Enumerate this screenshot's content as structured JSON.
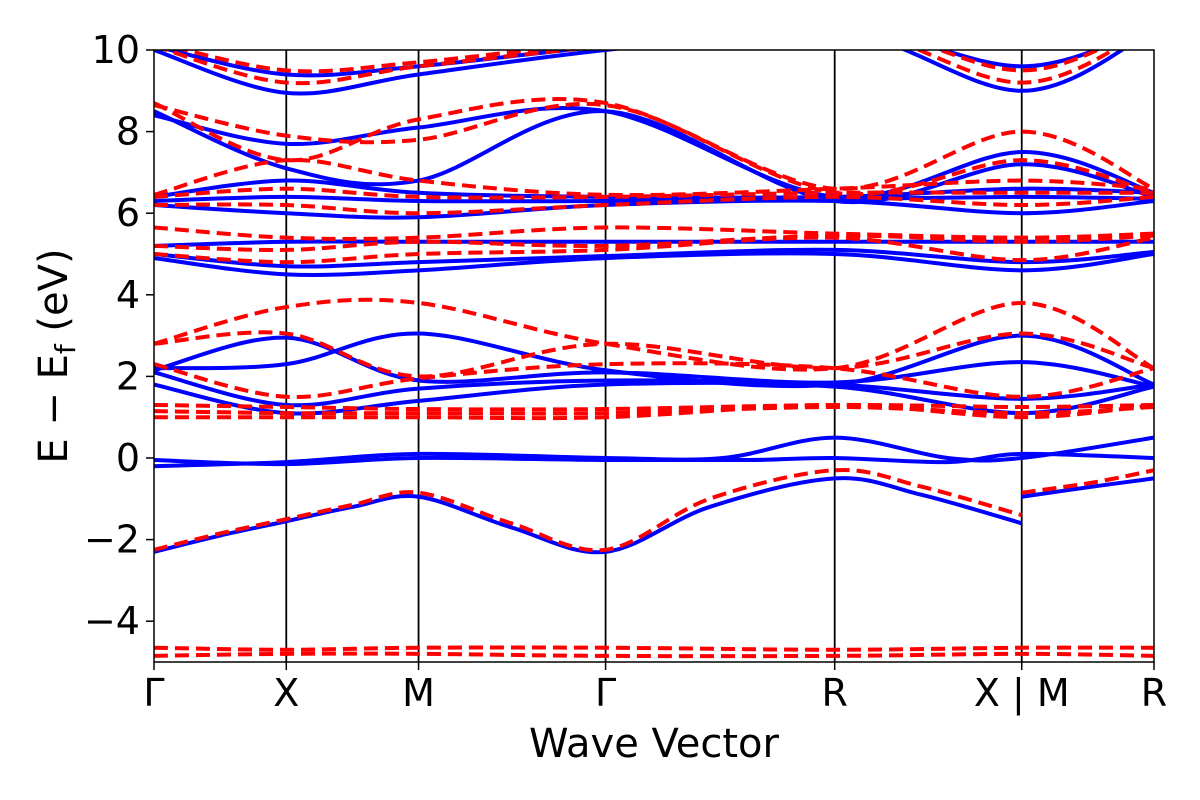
{
  "chart_data": {
    "type": "line",
    "title": "",
    "xlabel": "Wave Vector",
    "ylabel_main": "E − E",
    "ylabel_sub": "f",
    "ylabel_unit": " (eV)",
    "ylim": [
      -5,
      10
    ],
    "yticks": [
      -4,
      -2,
      0,
      2,
      4,
      6,
      8,
      10
    ],
    "ytick_labels": [
      "−4",
      "−2",
      "0",
      "2",
      "4",
      "6",
      "8",
      "10"
    ],
    "kpath_positions": [
      0,
      1,
      2,
      3.414,
      5.146,
      6.56,
      7.56
    ],
    "kpath_labels": [
      "Γ",
      "X",
      "M",
      "Γ",
      "R",
      "X | M",
      "R"
    ],
    "colors": {
      "series_a": "#0000ff",
      "series_b": "#ff0000"
    },
    "series": [
      {
        "style": "solid",
        "color": "#0000ff",
        "bands": [
          {
            "x": [
              0,
              0.5,
              1,
              1.5,
              2,
              2.7,
              3.414,
              4.2,
              5.146,
              5.8,
              6.56
            ],
            "y": [
              -2.3,
              -1.9,
              -1.55,
              -1.2,
              -0.95,
              -1.7,
              -2.3,
              -1.2,
              -0.5,
              -0.9,
              -1.6
            ]
          },
          {
            "x": [
              6.56,
              7.1,
              7.56
            ],
            "y": [
              -0.95,
              -0.7,
              -0.5
            ]
          },
          {
            "x": [
              0,
              1,
              2,
              3.414,
              4.3,
              5.146,
              6,
              6.56,
              7.56
            ],
            "y": [
              -0.2,
              -0.1,
              0.1,
              0,
              0,
              0.5,
              0,
              0,
              0.5
            ]
          },
          {
            "x": [
              0,
              1,
              2,
              3.414,
              4.5,
              5.146,
              6,
              6.56,
              7.56
            ],
            "y": [
              -0.05,
              -0.15,
              0,
              -0.05,
              -0.05,
              0,
              -0.1,
              0.1,
              0
            ]
          },
          {
            "x": [
              0,
              1,
              2,
              3.414,
              5.146,
              6.56,
              7.56
            ],
            "y": [
              1.8,
              1.1,
              1.4,
              1.8,
              1.75,
              1.1,
              1.75
            ]
          },
          {
            "x": [
              0,
              1,
              2,
              3.414,
              5.146,
              6.56,
              7.56
            ],
            "y": [
              2.1,
              1.3,
              1.7,
              1.9,
              1.8,
              1.45,
              1.8
            ]
          },
          {
            "x": [
              0,
              1,
              2,
              3.414,
              5.146,
              6.56,
              7.56
            ],
            "y": [
              2.15,
              2.95,
              1.9,
              2.1,
              1.85,
              2.35,
              1.75
            ]
          },
          {
            "x": [
              0,
              1,
              2,
              3.414,
              5.146,
              6.56,
              7.56
            ],
            "y": [
              2.2,
              2.3,
              3.05,
              2.15,
              1.8,
              3.0,
              1.8
            ]
          },
          {
            "x": [
              0,
              1,
              2,
              3.414,
              5.146,
              6.56,
              7.56
            ],
            "y": [
              4.9,
              4.5,
              4.6,
              4.9,
              5.0,
              4.6,
              5.0
            ]
          },
          {
            "x": [
              0,
              1,
              2,
              3.414,
              5.146,
              6.56,
              7.56
            ],
            "y": [
              5.0,
              4.7,
              4.8,
              4.95,
              5.1,
              4.8,
              5.05
            ]
          },
          {
            "x": [
              0,
              1,
              2,
              3.414,
              5.146,
              6.56,
              7.56
            ],
            "y": [
              5.2,
              5.3,
              5.3,
              5.3,
              5.3,
              5.3,
              5.3
            ]
          },
          {
            "x": [
              0,
              1,
              2,
              3.414,
              5.146,
              6.56,
              7.56
            ],
            "y": [
              6.2,
              6.0,
              5.9,
              6.2,
              6.3,
              6.0,
              6.3
            ]
          },
          {
            "x": [
              0,
              1,
              2,
              3.414,
              5.146,
              6.56,
              7.56
            ],
            "y": [
              6.3,
              6.4,
              6.3,
              6.3,
              6.35,
              6.4,
              6.35
            ]
          },
          {
            "x": [
              0,
              1,
              2,
              3.414,
              5.146,
              6.56,
              7.56
            ],
            "y": [
              6.4,
              6.8,
              6.5,
              6.4,
              6.4,
              6.6,
              6.5
            ]
          },
          {
            "x": [
              0,
              1,
              2,
              3.414,
              5.146,
              6.56,
              7.56
            ],
            "y": [
              8.5,
              7.1,
              6.8,
              8.5,
              6.3,
              7.2,
              6.4
            ]
          },
          {
            "x": [
              0,
              1,
              2,
              3.414,
              5.146,
              6.56,
              7.56
            ],
            "y": [
              8.4,
              7.7,
              8.1,
              8.5,
              6.4,
              7.5,
              6.5
            ]
          },
          {
            "x": [
              0,
              1,
              2,
              3.414,
              5.146,
              6.56,
              7.56
            ],
            "y": [
              10.0,
              8.95,
              9.4,
              10.0,
              10.5,
              9.0,
              10.5
            ]
          },
          {
            "x": [
              0,
              1,
              2,
              3.414,
              5.146,
              6.56,
              7.56
            ],
            "y": [
              10.1,
              9.4,
              9.6,
              10.1,
              10.6,
              9.6,
              10.6
            ]
          }
        ]
      },
      {
        "style": "dashed",
        "color": "#ff0000",
        "bands": [
          {
            "x": [
              0,
              1,
              2,
              3.414,
              5.146,
              6.56,
              7.56
            ],
            "y": [
              -4.85,
              -4.8,
              -4.8,
              -4.85,
              -4.85,
              -4.8,
              -4.85
            ]
          },
          {
            "x": [
              0,
              1,
              2,
              3.414,
              5.146,
              6.56,
              7.56
            ],
            "y": [
              -4.65,
              -4.7,
              -4.65,
              -4.65,
              -4.7,
              -4.65,
              -4.65
            ]
          },
          {
            "x": [
              0,
              0.5,
              1,
              1.5,
              2,
              2.7,
              3.414,
              4.2,
              5.146,
              5.8,
              6.56
            ],
            "y": [
              -2.25,
              -1.85,
              -1.5,
              -1.15,
              -0.85,
              -1.6,
              -2.25,
              -1.0,
              -0.3,
              -0.7,
              -1.4
            ]
          },
          {
            "x": [
              6.56,
              7.1,
              7.56
            ],
            "y": [
              -0.85,
              -0.6,
              -0.3
            ]
          },
          {
            "x": [
              0,
              1,
              2,
              3.414,
              5.146,
              6.56,
              7.56
            ],
            "y": [
              1.0,
              1.0,
              1.0,
              1.0,
              1.3,
              1.0,
              1.3
            ]
          },
          {
            "x": [
              0,
              1,
              2,
              3.414,
              5.146,
              6.56,
              7.56
            ],
            "y": [
              1.15,
              1.1,
              1.1,
              1.1,
              1.25,
              1.1,
              1.25
            ]
          },
          {
            "x": [
              0,
              1,
              2,
              3.414,
              5.146,
              6.56,
              7.56
            ],
            "y": [
              1.3,
              1.25,
              1.2,
              1.2,
              1.3,
              1.25,
              1.3
            ]
          },
          {
            "x": [
              0,
              1,
              2,
              3.414,
              5.146,
              6.56,
              7.56
            ],
            "y": [
              2.3,
              1.5,
              1.95,
              2.3,
              2.2,
              1.5,
              2.2
            ]
          },
          {
            "x": [
              0,
              1,
              2,
              3.414,
              5.146,
              6.56,
              7.56
            ],
            "y": [
              2.8,
              3.05,
              2.0,
              2.8,
              2.2,
              3.05,
              2.2
            ]
          },
          {
            "x": [
              0,
              1,
              2,
              3.414,
              5.146,
              6.56,
              7.56
            ],
            "y": [
              2.8,
              3.7,
              3.8,
              2.8,
              2.2,
              3.8,
              2.2
            ]
          },
          {
            "x": [
              0,
              1,
              2,
              3.414,
              5.146,
              6.56,
              7.56
            ],
            "y": [
              5.0,
              4.8,
              5.0,
              5.1,
              5.4,
              4.85,
              5.4
            ]
          },
          {
            "x": [
              0,
              1,
              2,
              3.414,
              5.146,
              6.56,
              7.56
            ],
            "y": [
              5.2,
              5.1,
              5.3,
              5.2,
              5.45,
              5.3,
              5.45
            ]
          },
          {
            "x": [
              0,
              1,
              2,
              3.414,
              5.146,
              6.56,
              7.56
            ],
            "y": [
              5.65,
              5.4,
              5.4,
              5.65,
              5.5,
              5.4,
              5.5
            ]
          },
          {
            "x": [
              0,
              1,
              2,
              3.414,
              5.146,
              6.56,
              7.56
            ],
            "y": [
              6.2,
              6.2,
              6.0,
              6.2,
              6.4,
              6.2,
              6.4
            ]
          },
          {
            "x": [
              0,
              1,
              2,
              3.414,
              5.146,
              6.56,
              7.56
            ],
            "y": [
              6.4,
              6.6,
              6.4,
              6.4,
              6.5,
              6.5,
              6.5
            ]
          },
          {
            "x": [
              0,
              1,
              2,
              3.414,
              5.146,
              6.56,
              7.56
            ],
            "y": [
              6.45,
              7.3,
              6.8,
              6.45,
              6.6,
              6.8,
              6.6
            ]
          },
          {
            "x": [
              0,
              1,
              2,
              3.414,
              5.146,
              6.56,
              7.56
            ],
            "y": [
              8.65,
              7.9,
              7.8,
              8.65,
              6.6,
              8.0,
              6.6
            ]
          },
          {
            "x": [
              0,
              1,
              2,
              3.414,
              5.146,
              6.56,
              7.56
            ],
            "y": [
              8.7,
              7.3,
              8.3,
              8.7,
              6.5,
              7.3,
              6.5
            ]
          },
          {
            "x": [
              0,
              1,
              2,
              3.414,
              5.146,
              6.56,
              7.56
            ],
            "y": [
              10.1,
              9.2,
              9.6,
              10.1,
              10.6,
              9.2,
              10.6
            ]
          },
          {
            "x": [
              0,
              1,
              2,
              3.414,
              5.146,
              6.56,
              7.56
            ],
            "y": [
              10.2,
              9.5,
              9.7,
              10.2,
              10.7,
              9.5,
              10.7
            ]
          }
        ]
      }
    ]
  }
}
